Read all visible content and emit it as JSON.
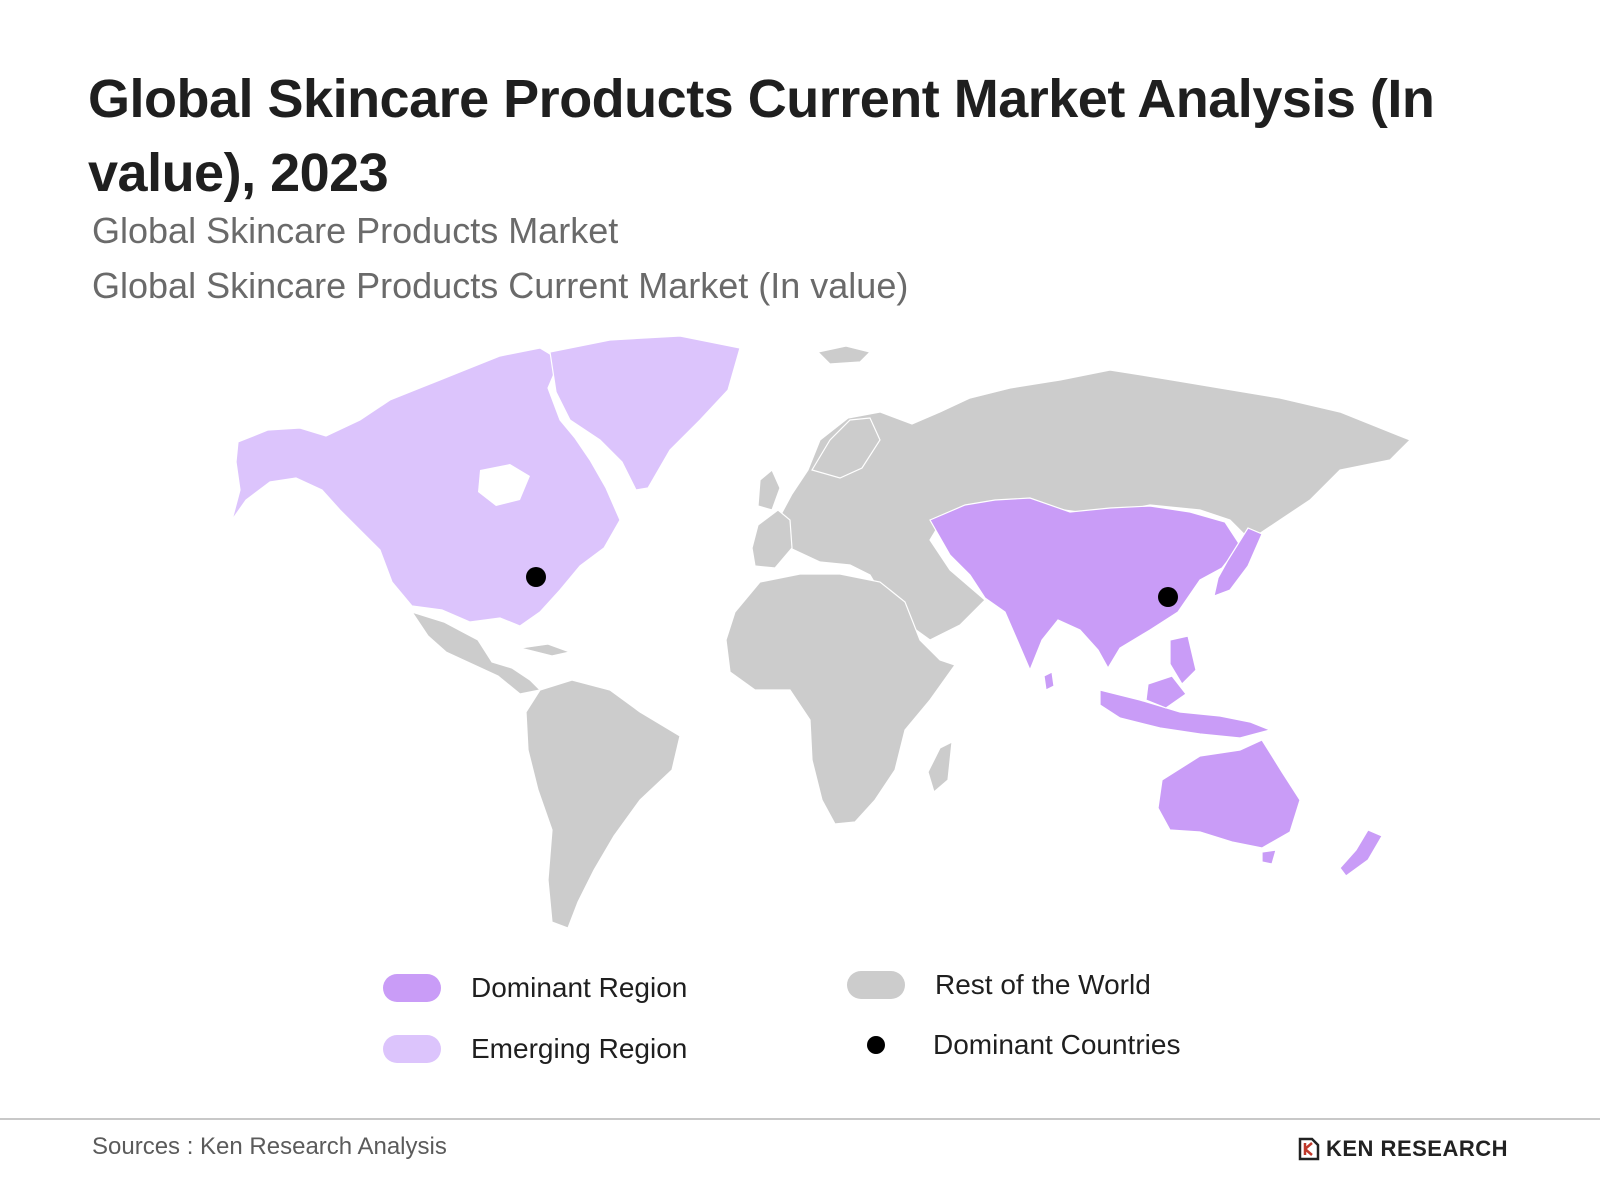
{
  "title": "Global Skincare Products Current Market Analysis (In value), 2023",
  "subtitle_1": "Global Skincare Products Market",
  "subtitle_2": "Global Skincare Products Current Market (In value)",
  "colors": {
    "dominant_region": "#c99cf7",
    "emerging_region": "#dcc4fc",
    "rest_of_world": "#cccccc",
    "dominant_countries": "#000000"
  },
  "legend": {
    "dominant_region": "Dominant Region",
    "emerging_region": "Emerging Region",
    "rest_of_world": "Rest of the World",
    "dominant_countries": "Dominant Countries"
  },
  "map": {
    "dominant_regions": [
      "Asia-Pacific"
    ],
    "emerging_regions": [
      "North America"
    ],
    "dominant_country_markers": [
      "United States",
      "China"
    ]
  },
  "footer": {
    "source": "Sources : Ken Research Analysis",
    "brand": "KEN RESEARCH",
    "logo_icon": "ken-research-logo-icon"
  }
}
